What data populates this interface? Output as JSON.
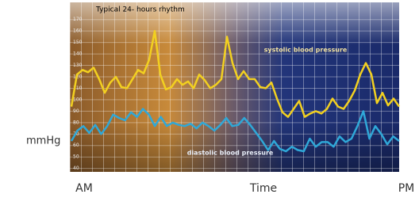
{
  "chart_data": {
    "type": "line",
    "title": "Typical 24- hours rhythm",
    "y_label": "mmHg",
    "x_label": "Time",
    "x_start_label": "AM",
    "x_end_label": "PM",
    "annotations": [
      "systolic blood pressure",
      "diastolic blood pressure"
    ],
    "ylim": [
      37,
      185
    ],
    "yticks": [
      40,
      50,
      60,
      70,
      80,
      90,
      100,
      110,
      120,
      130,
      140,
      150,
      160,
      170
    ],
    "grid": true,
    "series": [
      {
        "name": "systolic blood pressure",
        "color": "#f2d020",
        "values": [
          94,
          122,
          126,
          124,
          128,
          118,
          106,
          115,
          120,
          111,
          110,
          118,
          126,
          123,
          135,
          160,
          122,
          109,
          111,
          118,
          113,
          116,
          110,
          122,
          117,
          110,
          113,
          118,
          155,
          132,
          118,
          125,
          118,
          118,
          111,
          110,
          115,
          101,
          89,
          85,
          92,
          99,
          85,
          88,
          90,
          88,
          92,
          101,
          94,
          92,
          99,
          108,
          122,
          132,
          122,
          97,
          106,
          95,
          101,
          94
        ]
      },
      {
        "name": "diastolic blood pressure",
        "color": "#2fa8d8",
        "values": [
          64,
          73,
          77,
          71,
          78,
          70,
          77,
          87,
          84,
          82,
          89,
          85,
          92,
          87,
          77,
          85,
          77,
          80,
          78,
          77,
          79,
          75,
          80,
          77,
          73,
          78,
          84,
          77,
          78,
          84,
          78,
          71,
          64,
          56,
          64,
          57,
          55,
          59,
          56,
          55,
          66,
          59,
          63,
          63,
          59,
          68,
          63,
          66,
          77,
          90,
          66,
          77,
          70,
          61,
          68,
          64
        ]
      }
    ]
  }
}
